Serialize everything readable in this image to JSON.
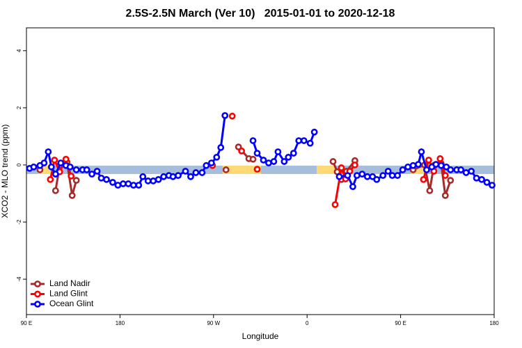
{
  "chart_data": {
    "type": "line",
    "title": "2.5S-2.5N March (Ver 10)   2015-01-01 to 2020-12-18",
    "x_label": "Longitude",
    "y_label": "XCO2 - MLO trend (ppm)",
    "xlim": [
      90,
      540
    ],
    "ylim": [
      -5.24,
      4.8
    ],
    "xticks": [
      {
        "value": 90,
        "label": "90 E"
      },
      {
        "value": 180,
        "label": "180"
      },
      {
        "value": 270,
        "label": "90 W"
      },
      {
        "value": 360,
        "label": "0"
      },
      {
        "value": 450,
        "label": "90 E"
      },
      {
        "value": 540,
        "label": "180"
      }
    ],
    "yticks": [
      -4,
      -2,
      0,
      2,
      4
    ],
    "legend": "bottom-left",
    "series": [
      {
        "name": "Land Nadir",
        "color": "#a52a2a",
        "x": [
          103,
          null,
          118,
          122,
          129,
          134,
          138,
          null,
          282,
          null,
          294,
          304,
          308,
          null,
          385,
          389,
          393,
          398,
          406,
          null,
          462,
          473,
          478,
          482,
          489,
          493,
          498
        ],
        "values": [
          -0.17,
          null,
          -0.9,
          -0.02,
          0.1,
          -1.07,
          -0.54,
          null,
          -0.17,
          null,
          0.63,
          0.22,
          0.2,
          null,
          0.12,
          -0.24,
          -0.51,
          -0.22,
          0.15,
          null,
          -0.17,
          0.0,
          -0.9,
          -0.02,
          0.05,
          -1.07,
          -0.54
        ]
      },
      {
        "name": "Land Glint",
        "color": "#ff0000",
        "x": [
          113,
          117,
          122,
          128,
          133,
          null,
          269,
          null,
          288,
          null,
          297,
          null,
          312,
          null,
          387,
          393,
          397,
          401,
          406,
          null,
          472,
          477,
          482,
          488,
          493
        ],
        "values": [
          -0.51,
          0.17,
          -0.24,
          0.2,
          -0.39,
          null,
          -0.02,
          null,
          1.71,
          null,
          0.49,
          null,
          -0.15,
          null,
          -1.39,
          -0.1,
          -0.49,
          -0.22,
          0.0,
          null,
          -0.51,
          0.17,
          -0.22,
          0.22,
          -0.37
        ]
      },
      {
        "name": "Ocean Glint",
        "color": "#0000ff",
        "x": [
          93,
          97,
          103,
          107,
          111,
          114,
          118,
          123,
          128,
          132,
          138,
          144,
          148,
          153,
          158,
          162,
          167,
          173,
          178,
          183,
          188,
          193,
          198,
          202,
          207,
          212,
          217,
          222,
          227,
          231,
          236,
          243,
          248,
          253,
          259,
          263,
          268,
          273,
          277,
          281,
          null,
          308,
          312,
          318,
          323,
          328,
          332,
          338,
          342,
          347,
          352,
          357,
          363,
          367,
          null,
          391,
          399,
          404,
          408,
          413,
          418,
          423,
          427,
          433,
          438,
          442,
          447,
          452,
          457,
          462,
          467,
          470,
          475,
          480,
          484,
          489,
          494,
          498,
          504,
          508,
          513,
          518,
          523,
          528,
          533,
          538
        ],
        "values": [
          -0.12,
          -0.07,
          -0.02,
          0.07,
          0.46,
          -0.07,
          -0.32,
          0.07,
          -0.02,
          -0.07,
          -0.17,
          -0.17,
          -0.17,
          -0.32,
          -0.22,
          -0.46,
          -0.51,
          -0.61,
          -0.71,
          -0.66,
          -0.66,
          -0.71,
          -0.71,
          -0.41,
          -0.56,
          -0.56,
          -0.51,
          -0.41,
          -0.37,
          -0.41,
          -0.37,
          -0.22,
          -0.41,
          -0.27,
          -0.27,
          -0.02,
          0.07,
          0.27,
          0.61,
          1.73,
          null,
          0.85,
          0.41,
          0.17,
          0.07,
          0.12,
          0.46,
          0.12,
          0.27,
          0.41,
          0.85,
          0.85,
          0.76,
          1.15,
          null,
          -0.41,
          -0.37,
          -0.76,
          -0.37,
          -0.32,
          -0.41,
          -0.41,
          -0.51,
          -0.37,
          -0.22,
          -0.37,
          -0.37,
          -0.17,
          -0.07,
          -0.02,
          0.02,
          0.46,
          -0.17,
          -0.07,
          0.02,
          -0.02,
          -0.07,
          -0.17,
          -0.17,
          -0.17,
          -0.27,
          -0.22,
          -0.46,
          -0.51,
          -0.61,
          -0.71
        ]
      }
    ]
  }
}
